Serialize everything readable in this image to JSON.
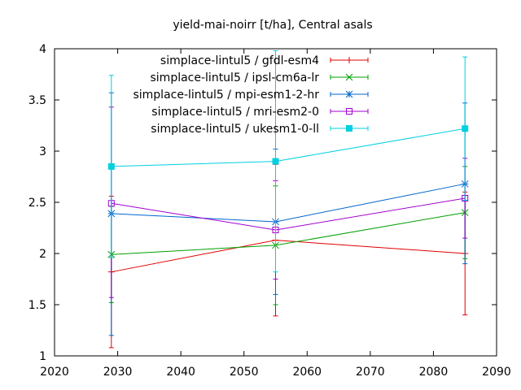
{
  "chart_data": {
    "type": "line",
    "title": "yield-mai-noirr [t/ha], Central asals",
    "xlim": [
      2020,
      2090
    ],
    "ylim": [
      1,
      4
    ],
    "x_ticks": [
      "2020",
      "2030",
      "2040",
      "2050",
      "2060",
      "2070",
      "2080",
      "2090"
    ],
    "y_ticks": [
      "1",
      "1.5",
      "2",
      "2.5",
      "3",
      "3.5",
      "4"
    ],
    "grid": false,
    "legend_position": "top-right",
    "series": [
      {
        "name": "simplace-lintul5 / gfdl-esm4",
        "color": "#e00000",
        "marker": "plus",
        "x": [
          2029,
          2055,
          2085
        ],
        "y": [
          1.82,
          2.13,
          2.0
        ],
        "yerr_low": [
          1.08,
          1.39,
          1.4
        ],
        "yerr_high": [
          2.56,
          2.87,
          2.6
        ]
      },
      {
        "name": "simplace-lintul5 / ipsl-cm6a-lr",
        "color": "#00a000",
        "marker": "cross",
        "x": [
          2029,
          2055,
          2085
        ],
        "y": [
          1.99,
          2.08,
          2.4
        ],
        "yerr_low": [
          1.52,
          1.5,
          1.95
        ],
        "yerr_high": [
          2.46,
          2.66,
          2.85
        ]
      },
      {
        "name": "simplace-lintul5 / mpi-esm1-2-hr",
        "color": "#0066cc",
        "marker": "star",
        "x": [
          2029,
          2055,
          2085
        ],
        "y": [
          2.39,
          2.31,
          2.68
        ],
        "yerr_low": [
          1.2,
          1.6,
          1.9
        ],
        "yerr_high": [
          3.57,
          3.02,
          3.47
        ]
      },
      {
        "name": "simplace-lintul5 / mri-esm2-0",
        "color": "#a000d0",
        "marker": "square",
        "x": [
          2029,
          2055,
          2085
        ],
        "y": [
          2.49,
          2.23,
          2.54
        ],
        "yerr_low": [
          1.57,
          1.75,
          2.15
        ],
        "yerr_high": [
          3.43,
          2.71,
          2.93
        ]
      },
      {
        "name": "simplace-lintul5 / ukesm1-0-ll",
        "color": "#00d0e0",
        "marker": "filled-square",
        "x": [
          2029,
          2055,
          2085
        ],
        "y": [
          2.85,
          2.9,
          3.22
        ],
        "yerr_low": [
          1.96,
          1.82,
          2.52
        ],
        "yerr_high": [
          3.74,
          3.98,
          3.92
        ]
      }
    ]
  }
}
